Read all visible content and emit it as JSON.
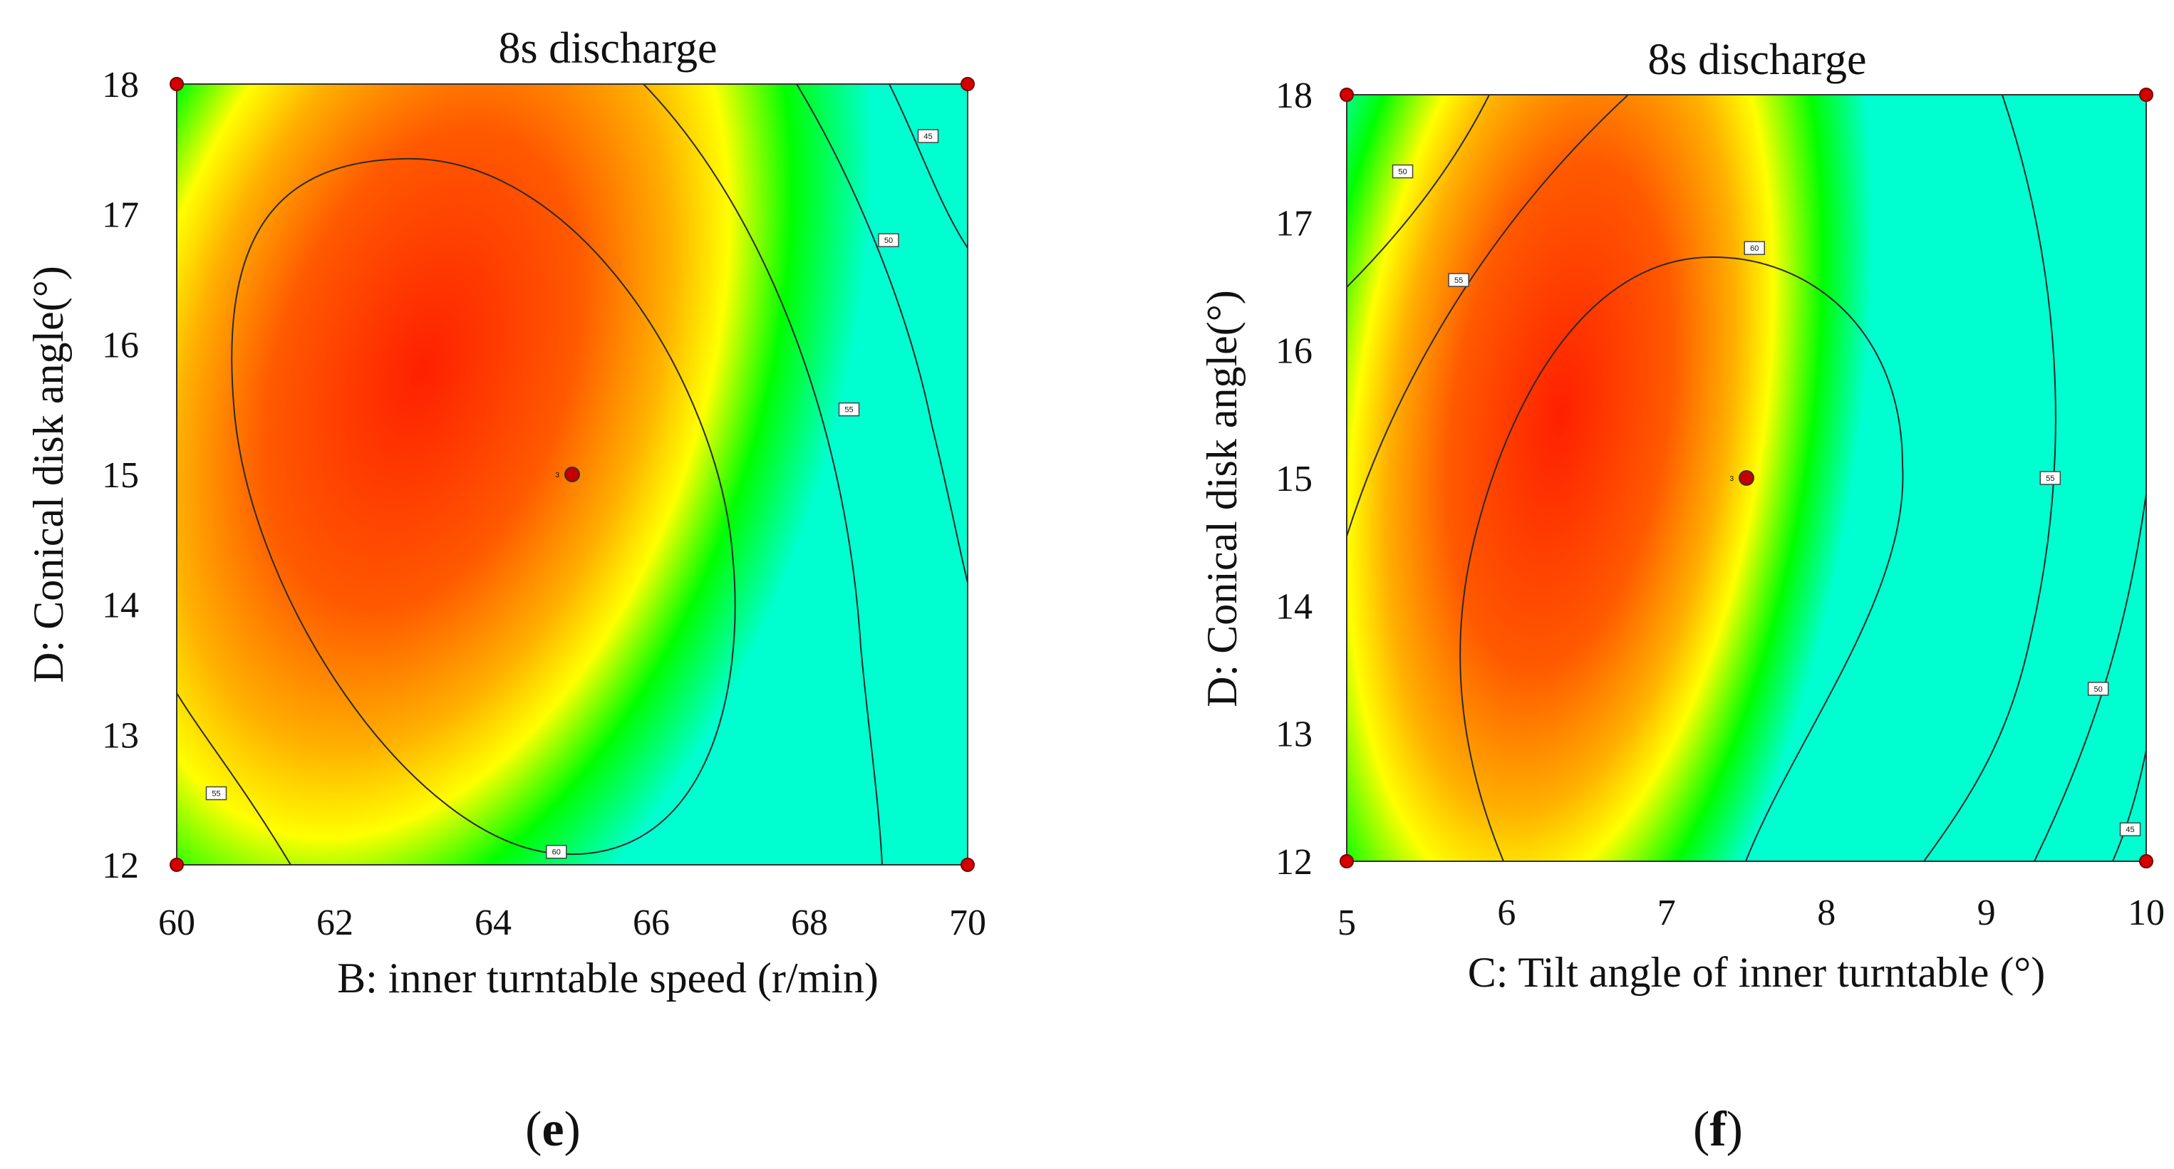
{
  "chart_data": [
    {
      "type": "contour",
      "panel": {
        "open": "(",
        "letter": "e",
        "close": ")"
      },
      "title": "8s discharge",
      "xlabel": "B: inner turntable speed (r/min)",
      "ylabel": "D: Conical disk angle(°)",
      "xlim": [
        60,
        70
      ],
      "ylim": [
        12,
        18
      ],
      "xticks": [
        "60",
        "62",
        "64",
        "66",
        "68",
        "70"
      ],
      "yticks": [
        "12",
        "13",
        "14",
        "15",
        "16",
        "17",
        "18"
      ],
      "colormap": [
        "#00ff00",
        "#ffff00",
        "#ff8c00",
        "#ff2000"
      ],
      "contour_labels": [
        {
          "text": "60",
          "x": 64.8,
          "y": 12.1
        },
        {
          "text": "55",
          "x": 68.5,
          "y": 15.5
        },
        {
          "text": "55",
          "x": 60.5,
          "y": 12.55
        },
        {
          "text": "50",
          "x": 69.0,
          "y": 16.8
        },
        {
          "text": "45",
          "x": 69.5,
          "y": 17.6
        }
      ],
      "design_points": [
        {
          "x": 60,
          "y": 12
        },
        {
          "x": 70,
          "y": 12
        },
        {
          "x": 60,
          "y": 18
        },
        {
          "x": 70,
          "y": 18
        }
      ],
      "center_point": {
        "x": 65,
        "y": 15,
        "label": "3"
      }
    },
    {
      "type": "contour",
      "panel": {
        "open": "(",
        "letter": "f",
        "close": ")"
      },
      "title": "8s discharge",
      "xlabel": "C: Tilt angle of inner turntable (°)",
      "ylabel": "D: Conical disk angle(°)",
      "xlim": [
        5,
        10
      ],
      "ylim": [
        12,
        18
      ],
      "xticks": [
        "5",
        "6",
        "7",
        "8",
        "9",
        "10"
      ],
      "yticks": [
        "12",
        "13",
        "14",
        "15",
        "16",
        "17",
        "18"
      ],
      "colormap": [
        "#00ff00",
        "#ffff00",
        "#ff8c00",
        "#ff2000"
      ],
      "contour_labels": [
        {
          "text": "60",
          "x": 7.55,
          "y": 16.8
        },
        {
          "text": "55",
          "x": 5.7,
          "y": 16.55
        },
        {
          "text": "50",
          "x": 5.35,
          "y": 17.4
        },
        {
          "text": "55",
          "x": 9.4,
          "y": 15.0
        },
        {
          "text": "50",
          "x": 9.7,
          "y": 13.35
        },
        {
          "text": "45",
          "x": 9.9,
          "y": 12.25
        }
      ],
      "design_points": [
        {
          "x": 5,
          "y": 12
        },
        {
          "x": 10,
          "y": 12
        },
        {
          "x": 5,
          "y": 18
        },
        {
          "x": 10,
          "y": 18
        }
      ],
      "center_point": {
        "x": 7.5,
        "y": 15,
        "label": "3"
      }
    }
  ]
}
